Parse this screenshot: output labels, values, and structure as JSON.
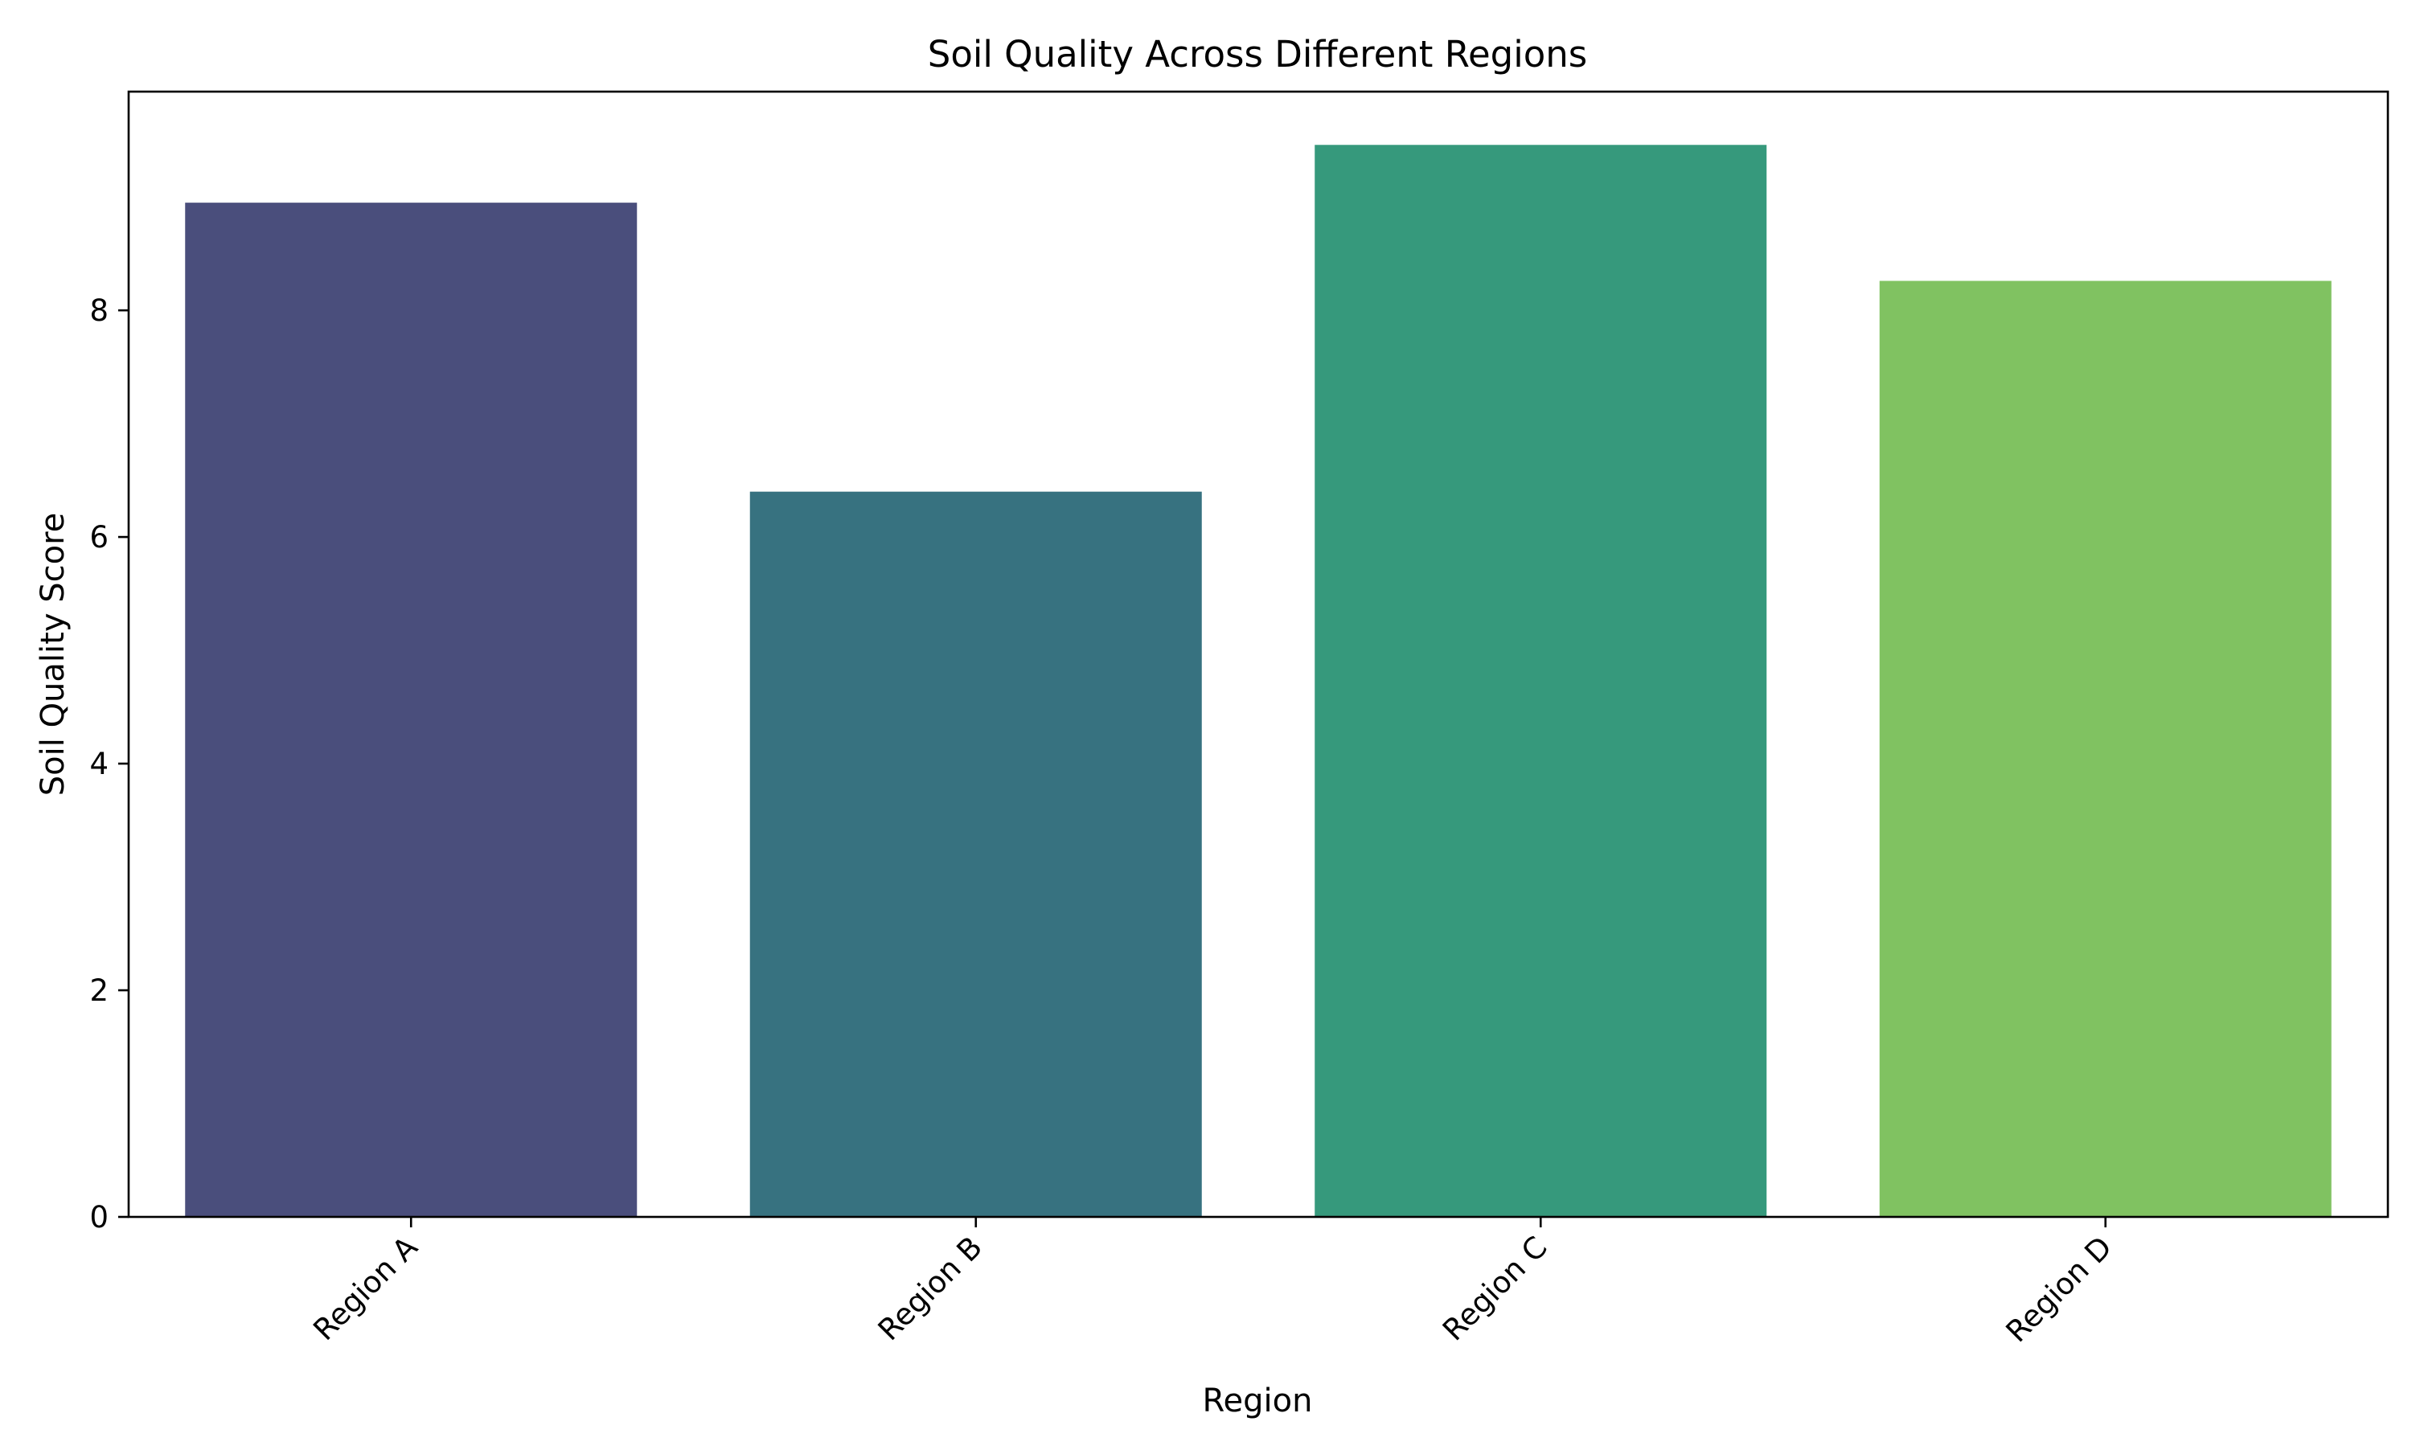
{
  "chart_data": {
    "type": "bar",
    "title": "Soil Quality Across Different Regions",
    "xlabel": "Region",
    "ylabel": "Soil Quality Score",
    "categories": [
      "Region A",
      "Region B",
      "Region C",
      "Region D"
    ],
    "values": [
      8.95,
      6.4,
      9.46,
      8.26
    ],
    "colors": [
      "#4a4e7c",
      "#377280",
      "#36997c",
      "#80c261"
    ],
    "ylim": [
      0,
      9.93
    ],
    "yticks": [
      0,
      2,
      4,
      6,
      8
    ],
    "grid": false,
    "legend": "none"
  }
}
